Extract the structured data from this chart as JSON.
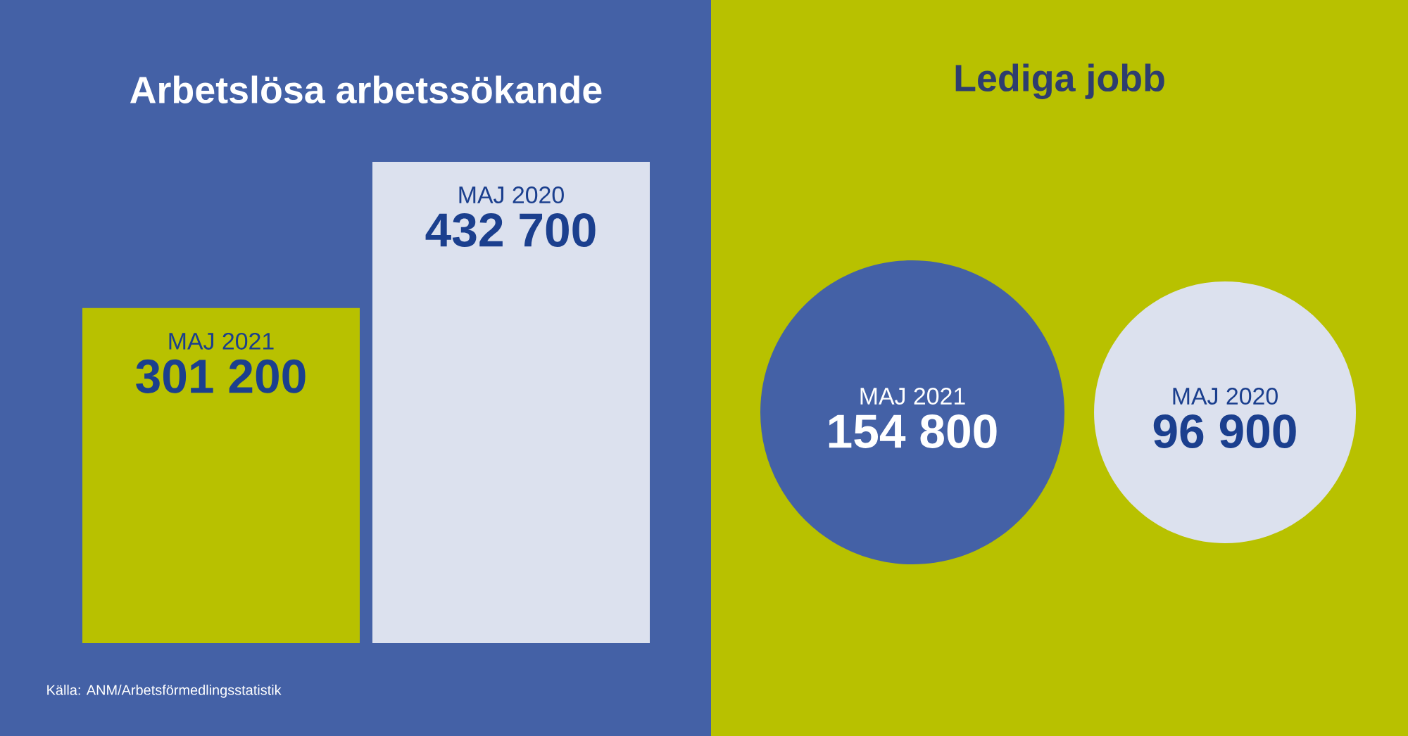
{
  "chart_data": [
    {
      "type": "bar",
      "title": "Arbetslösa arbetssökande",
      "categories": [
        "MAJ 2021",
        "MAJ 2020"
      ],
      "values": [
        301200,
        432700
      ],
      "value_labels": [
        "301 200",
        "432 700"
      ],
      "colors": [
        "#b8c100",
        "#dce1ee"
      ],
      "annotations": [
        "Källa: ANM/Arbetsförmedlingsstatistik"
      ]
    },
    {
      "type": "other",
      "title": "Lediga jobb",
      "categories": [
        "MAJ 2021",
        "MAJ 2020"
      ],
      "values": [
        154800,
        96900
      ],
      "value_labels": [
        "154 800",
        "96 900"
      ]
    }
  ]
}
